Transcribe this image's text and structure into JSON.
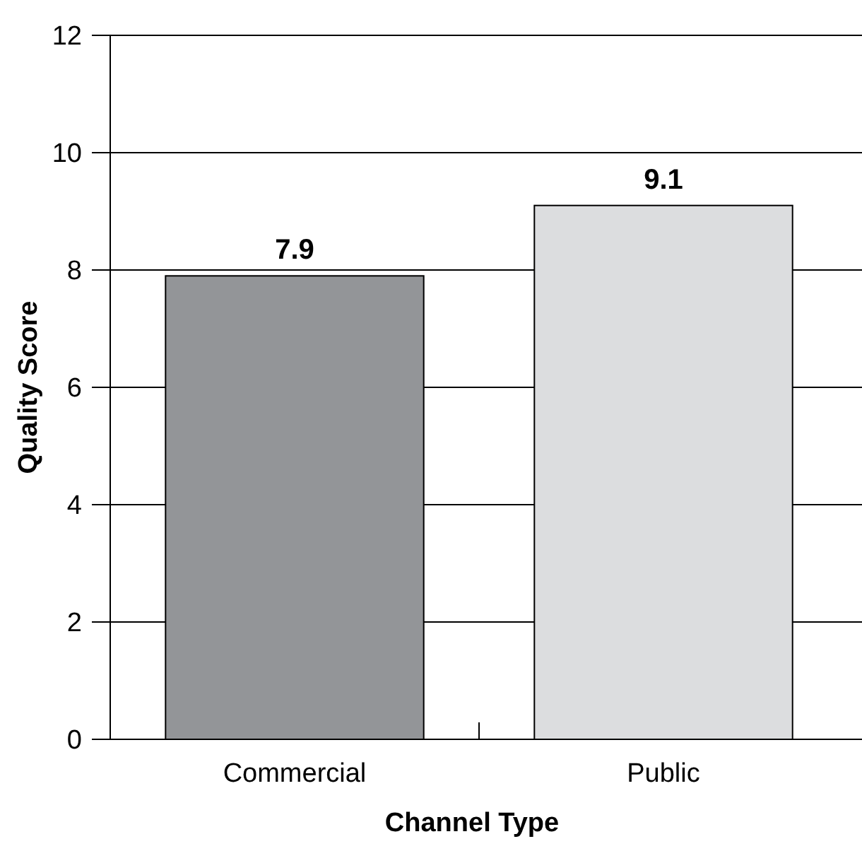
{
  "chart_data": {
    "type": "bar",
    "xlabel": "Channel Type",
    "ylabel": "Quality Score",
    "categories": [
      "Commercial",
      "Public"
    ],
    "values": [
      7.9,
      9.1
    ],
    "colors": [
      "#939598",
      "#dcdddf"
    ],
    "ylim": [
      0,
      12
    ],
    "yticks": [
      0,
      2,
      4,
      6,
      8,
      10,
      12
    ],
    "grid": "y",
    "data_labels": true
  }
}
